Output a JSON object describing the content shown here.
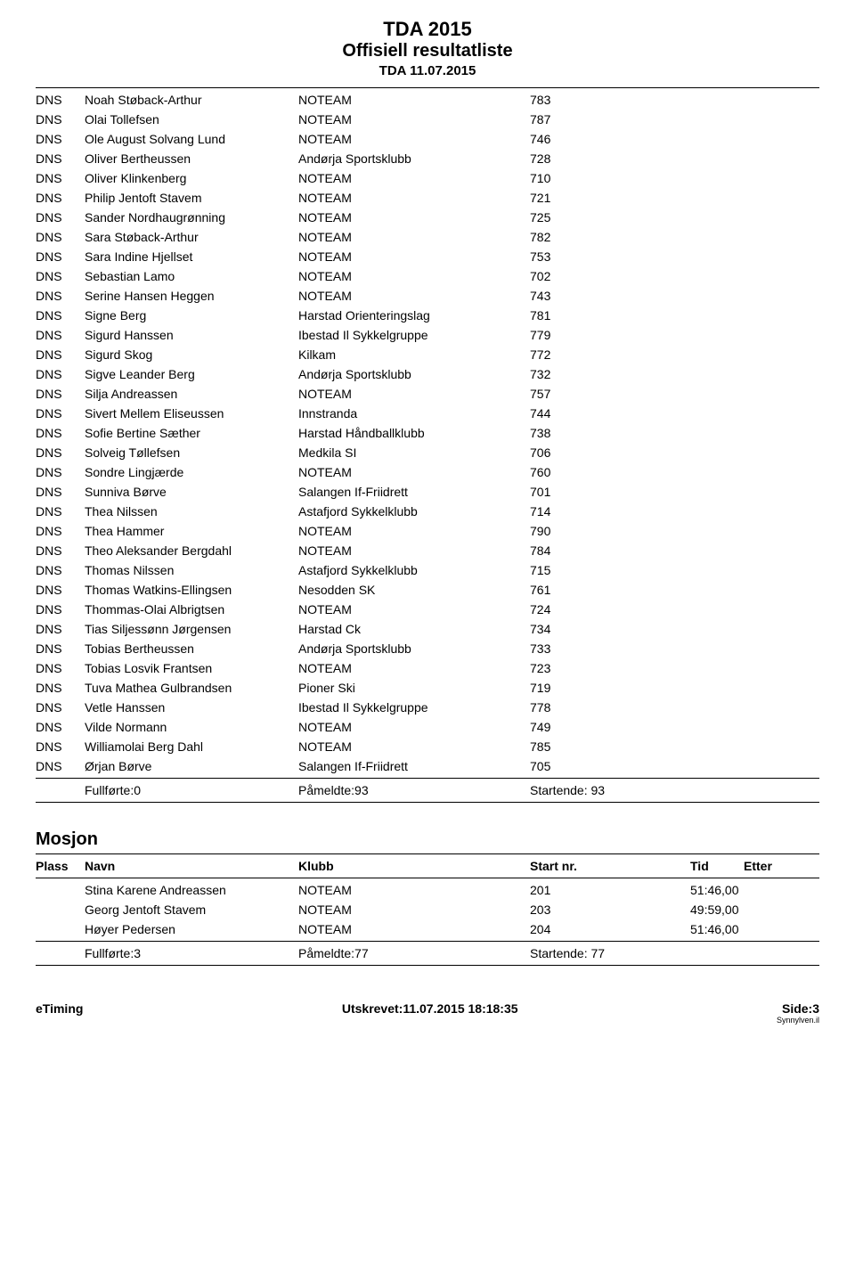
{
  "header": {
    "title": "TDA 2015",
    "subtitle": "Offisiell resultatliste",
    "date": "TDA 11.07.2015"
  },
  "results": {
    "rows": [
      {
        "status": "DNS",
        "name": "Noah Støback-Arthur",
        "club": "NOTEAM",
        "num": "783"
      },
      {
        "status": "DNS",
        "name": "Olai Tollefsen",
        "club": "NOTEAM",
        "num": "787"
      },
      {
        "status": "DNS",
        "name": "Ole August Solvang Lund",
        "club": "NOTEAM",
        "num": "746"
      },
      {
        "status": "DNS",
        "name": "Oliver Bertheussen",
        "club": "Andørja Sportsklubb",
        "num": "728"
      },
      {
        "status": "DNS",
        "name": "Oliver Klinkenberg",
        "club": "NOTEAM",
        "num": "710"
      },
      {
        "status": "DNS",
        "name": "Philip Jentoft Stavem",
        "club": "NOTEAM",
        "num": "721"
      },
      {
        "status": "DNS",
        "name": "Sander Nordhaugrønning",
        "club": "NOTEAM",
        "num": "725"
      },
      {
        "status": "DNS",
        "name": "Sara Støback-Arthur",
        "club": "NOTEAM",
        "num": "782"
      },
      {
        "status": "DNS",
        "name": "Sara Indine Hjellset",
        "club": "NOTEAM",
        "num": "753"
      },
      {
        "status": "DNS",
        "name": "Sebastian Lamo",
        "club": "NOTEAM",
        "num": "702"
      },
      {
        "status": "DNS",
        "name": "Serine Hansen Heggen",
        "club": "NOTEAM",
        "num": "743"
      },
      {
        "status": "DNS",
        "name": "Signe Berg",
        "club": "Harstad Orienteringslag",
        "num": "781"
      },
      {
        "status": "DNS",
        "name": "Sigurd Hanssen",
        "club": "Ibestad Il Sykkelgruppe",
        "num": "779"
      },
      {
        "status": "DNS",
        "name": "Sigurd Skog",
        "club": "Kilkam",
        "num": "772"
      },
      {
        "status": "DNS",
        "name": "Sigve Leander Berg",
        "club": "Andørja Sportsklubb",
        "num": "732"
      },
      {
        "status": "DNS",
        "name": "Silja Andreassen",
        "club": "NOTEAM",
        "num": "757"
      },
      {
        "status": "DNS",
        "name": "Sivert Mellem Eliseussen",
        "club": "Innstranda",
        "num": "744"
      },
      {
        "status": "DNS",
        "name": "Sofie Bertine Sæther",
        "club": "Harstad Håndballklubb",
        "num": "738"
      },
      {
        "status": "DNS",
        "name": "Solveig Tøllefsen",
        "club": "Medkila SI",
        "num": "706"
      },
      {
        "status": "DNS",
        "name": "Sondre Lingjærde",
        "club": "NOTEAM",
        "num": "760"
      },
      {
        "status": "DNS",
        "name": "Sunniva Børve",
        "club": "Salangen If-Friidrett",
        "num": "701"
      },
      {
        "status": "DNS",
        "name": "Thea Nilssen",
        "club": "Astafjord Sykkelklubb",
        "num": "714"
      },
      {
        "status": "DNS",
        "name": "Thea Hammer",
        "club": "NOTEAM",
        "num": "790"
      },
      {
        "status": "DNS",
        "name": "Theo Aleksander Bergdahl",
        "club": "NOTEAM",
        "num": "784"
      },
      {
        "status": "DNS",
        "name": "Thomas Nilssen",
        "club": "Astafjord Sykkelklubb",
        "num": "715"
      },
      {
        "status": "DNS",
        "name": "Thomas Watkins-Ellingsen",
        "club": "Nesodden SK",
        "num": "761"
      },
      {
        "status": "DNS",
        "name": "Thommas-Olai Albrigtsen",
        "club": "NOTEAM",
        "num": "724"
      },
      {
        "status": "DNS",
        "name": "Tias Siljessønn Jørgensen",
        "club": "Harstad Ck",
        "num": "734"
      },
      {
        "status": "DNS",
        "name": "Tobias Bertheussen",
        "club": "Andørja Sportsklubb",
        "num": "733"
      },
      {
        "status": "DNS",
        "name": "Tobias Losvik Frantsen",
        "club": "NOTEAM",
        "num": "723"
      },
      {
        "status": "DNS",
        "name": "Tuva Mathea Gulbrandsen",
        "club": "Pioner Ski",
        "num": "719"
      },
      {
        "status": "DNS",
        "name": "Vetle Hanssen",
        "club": "Ibestad Il Sykkelgruppe",
        "num": "778"
      },
      {
        "status": "DNS",
        "name": "Vilde Normann",
        "club": "NOTEAM",
        "num": "749"
      },
      {
        "status": "DNS",
        "name": "Williamolai Berg Dahl",
        "club": "NOTEAM",
        "num": "785"
      },
      {
        "status": "DNS",
        "name": "Ørjan Børve",
        "club": "Salangen If-Friidrett",
        "num": "705"
      }
    ],
    "summary": {
      "fullforte": "Fullførte:0",
      "pameldte": "Påmeldte:93",
      "startende": "Startende: 93"
    }
  },
  "mosjon": {
    "title": "Mosjon",
    "columns": {
      "plass": "Plass",
      "navn": "Navn",
      "klubb": "Klubb",
      "start": "Start nr.",
      "tid": "Tid",
      "etter": "Etter"
    },
    "rows": [
      {
        "name": "Stina Karene Andreassen",
        "club": "NOTEAM",
        "num": "201",
        "time": "51:46,00"
      },
      {
        "name": "Georg Jentoft Stavem",
        "club": "NOTEAM",
        "num": "203",
        "time": "49:59,00"
      },
      {
        "name": "Høyer Pedersen",
        "club": "NOTEAM",
        "num": "204",
        "time": "51:46,00"
      }
    ],
    "summary": {
      "fullforte": "Fullførte:3",
      "pameldte": "Påmeldte:77",
      "startende": "Startende: 77"
    }
  },
  "footer": {
    "left": "eTiming",
    "center": "Utskrevet:11.07.2015 18:18:35",
    "right": "Side:3",
    "right_tiny": "Synnylven.il"
  }
}
